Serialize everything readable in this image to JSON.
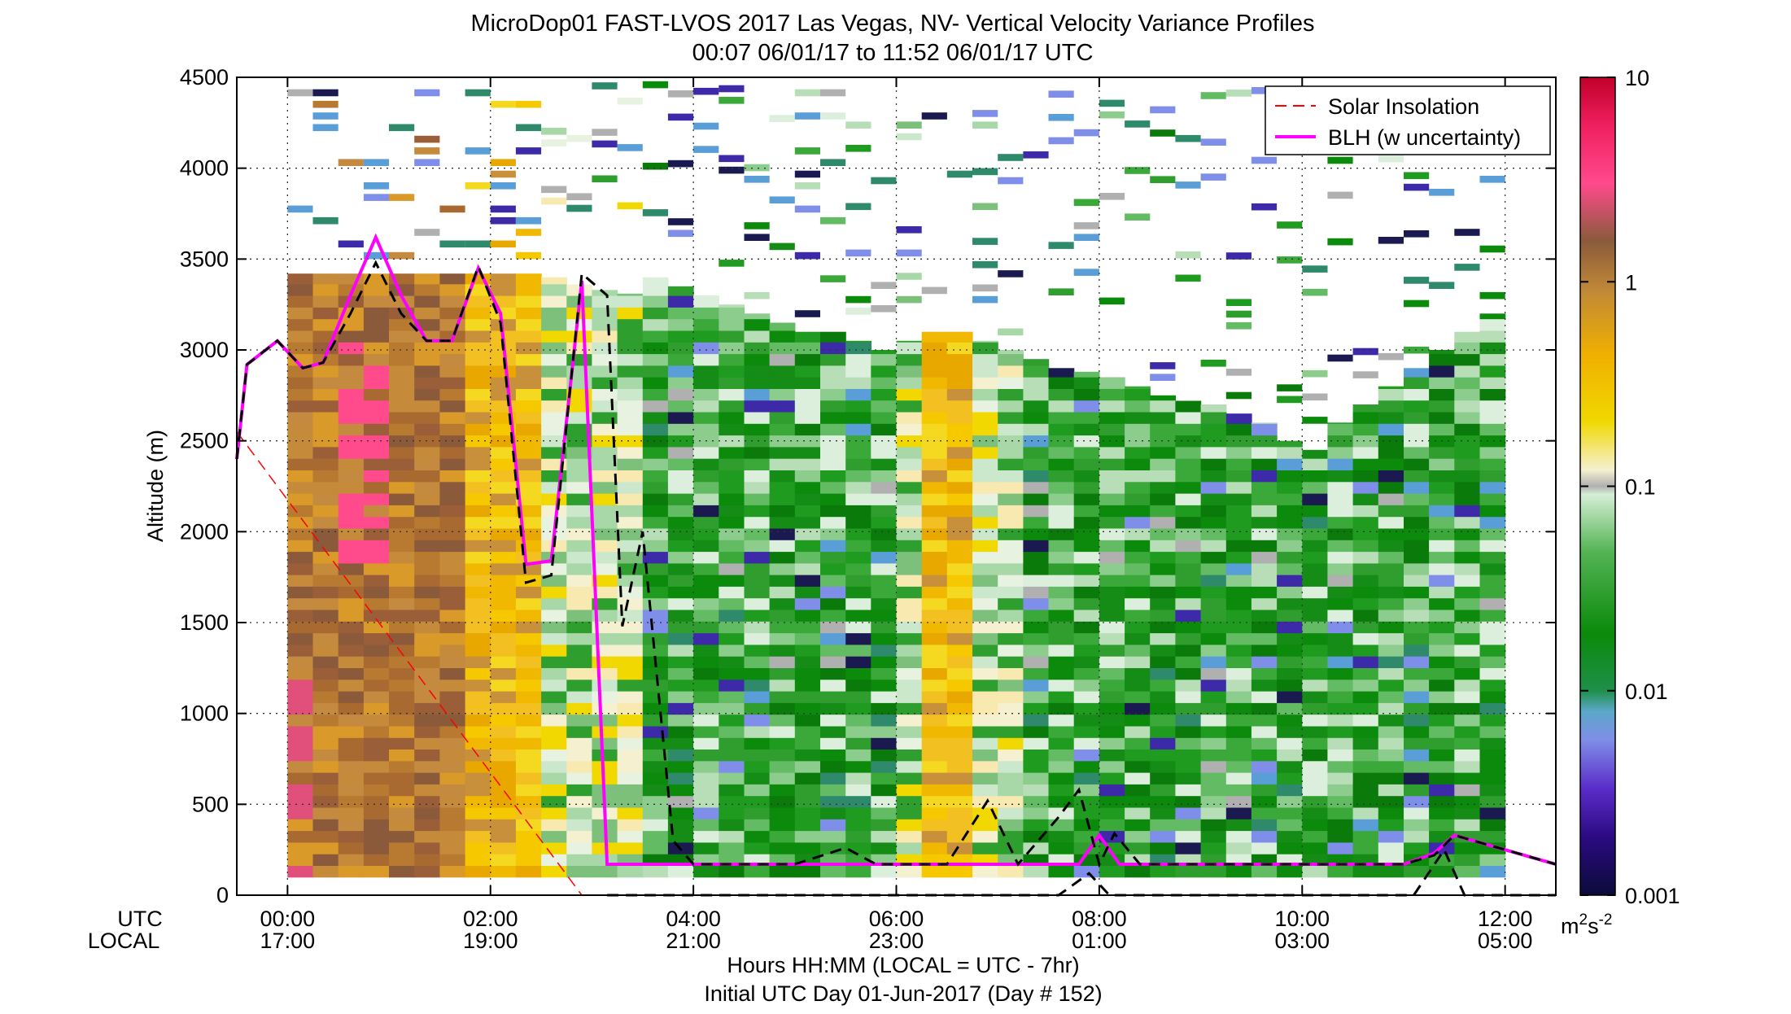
{
  "chart_data": {
    "type": "heatmap",
    "title_line1": "MicroDop01 FAST-LVOS 2017 Las Vegas, NV- Vertical Velocity Variance Profiles",
    "title_line2": "00:07 06/01/17 to 11:52 06/01/17  UTC",
    "ylabel": "Altitude (m)",
    "xlabel": "Hours HH:MM  (LOCAL = UTC - 7hr)",
    "footer": "Initial UTC Day 01-Jun-2017 (Day # 152)",
    "row_label_utc": "UTC",
    "row_label_local": "LOCAL",
    "xlim_hours": [
      -0.5,
      12.5
    ],
    "ylim": [
      0,
      4500
    ],
    "x_ticks_utc": [
      "00:00",
      "02:00",
      "04:00",
      "06:00",
      "08:00",
      "10:00",
      "12:00"
    ],
    "x_ticks_local": [
      "17:00",
      "19:00",
      "21:00",
      "23:00",
      "01:00",
      "03:00",
      "05:00"
    ],
    "x_tick_hours": [
      0,
      2,
      4,
      6,
      8,
      10,
      12
    ],
    "y_ticks": [
      "0",
      "500",
      "1000",
      "1500",
      "2000",
      "2500",
      "3000",
      "3500",
      "4000",
      "4500"
    ],
    "grid": true,
    "legend_position": "top-right",
    "legend": [
      {
        "name": "Solar Insolation",
        "color": "#ff0000",
        "style": "dashed"
      },
      {
        "name": "BLH (w uncertainty)",
        "color": "#ff00ff",
        "style": "solid"
      }
    ],
    "colorbar": {
      "scale": "log",
      "range": [
        0.001,
        10
      ],
      "tick_labels": [
        "10",
        "1",
        "0.1",
        "0.01",
        "0.001"
      ],
      "units": "m²s⁻²",
      "units_base": "m",
      "units_sup1": "2",
      "units_mid": "s",
      "units_sup2": "-2"
    },
    "columns_time_hours": [
      0.125,
      0.375,
      0.625,
      0.875,
      1.125,
      1.375,
      1.625,
      1.875,
      2.125,
      2.375,
      2.625,
      2.875,
      3.125,
      3.375,
      3.625,
      3.875,
      4.125,
      4.375,
      4.625,
      4.875,
      5.125,
      5.375,
      5.625,
      5.875,
      6.125,
      6.375,
      6.625,
      6.875,
      7.125,
      7.375,
      7.625,
      7.875,
      8.125,
      8.375,
      8.625,
      8.875,
      9.125,
      9.375,
      9.625,
      9.875,
      10.125,
      10.375,
      10.625,
      10.875,
      11.125,
      11.375,
      11.625,
      11.875
    ],
    "columns_top_alt": [
      3420,
      3420,
      3420,
      3420,
      3420,
      3420,
      3420,
      3420,
      3420,
      3420,
      3400,
      3360,
      3330,
      3310,
      3400,
      3350,
      3300,
      3250,
      3200,
      3150,
      3100,
      3100,
      3050,
      3000,
      3050,
      3100,
      3100,
      3050,
      3000,
      2950,
      2900,
      2880,
      2850,
      2800,
      2750,
      2720,
      2700,
      2650,
      2600,
      2500,
      2450,
      2600,
      2700,
      2800,
      2900,
      3000,
      3100,
      3200
    ],
    "columns_regime": [
      "hot",
      "hot",
      "hot",
      "hot",
      "hot",
      "hot",
      "hot",
      "warm",
      "warm",
      "warm",
      "mixed",
      "mixed",
      "mixed",
      "mixed",
      "green",
      "green",
      "green",
      "green",
      "green",
      "green",
      "green",
      "green",
      "green",
      "green",
      "mixed",
      "warm",
      "warm",
      "mixed",
      "mixed",
      "green",
      "green",
      "green",
      "green",
      "green",
      "green",
      "green",
      "green",
      "green",
      "green",
      "green",
      "green",
      "green",
      "green",
      "green",
      "green",
      "green",
      "green",
      "green"
    ],
    "bl_height": {
      "x": [
        -0.5,
        -0.4,
        -0.1,
        0.15,
        0.35,
        0.62,
        0.87,
        1.12,
        1.37,
        1.62,
        1.88,
        2.1,
        2.35,
        2.6,
        2.9,
        3.15,
        3.5,
        4,
        5,
        6,
        7,
        7.6,
        7.8,
        8,
        8.2,
        9,
        10,
        11,
        11.3,
        11.5,
        12.5
      ],
      "y": [
        2400,
        2920,
        3050,
        2900,
        2930,
        3300,
        3620,
        3300,
        3050,
        3050,
        3450,
        3200,
        1820,
        1840,
        3380,
        170,
        170,
        170,
        170,
        170,
        170,
        170,
        170,
        330,
        170,
        170,
        170,
        170,
        230,
        330,
        170
      ]
    },
    "bl_upper": {
      "x": [
        -0.5,
        -0.4,
        -0.1,
        0.15,
        0.35,
        0.62,
        0.87,
        1.12,
        1.37,
        1.62,
        1.88,
        2.1,
        2.35,
        2.6,
        2.9,
        3.15,
        3.3,
        3.5,
        3.8,
        4,
        5,
        5.5,
        5.8,
        6.5,
        6.9,
        7.2,
        7.6,
        7.8,
        8.0,
        8.15,
        8.4,
        9,
        10,
        11,
        11.3,
        11.5,
        12.5
      ],
      "y": [
        2400,
        2920,
        3050,
        2900,
        2930,
        3200,
        3480,
        3200,
        3050,
        3050,
        3460,
        3150,
        1720,
        1760,
        3420,
        3300,
        1480,
        2000,
        300,
        170,
        170,
        260,
        170,
        170,
        520,
        170,
        430,
        580,
        170,
        340,
        170,
        170,
        170,
        170,
        220,
        330,
        170
      ]
    },
    "bl_lower": {
      "x": [
        3.15,
        3.5,
        4,
        5,
        5.4,
        5.7,
        6,
        7,
        7.6,
        7.9,
        8.1,
        8.3,
        9,
        10,
        11.1,
        11.4,
        11.6,
        12.5
      ],
      "y": [
        0,
        0,
        0,
        0,
        0,
        0,
        0,
        0,
        0,
        120,
        0,
        0,
        0,
        0,
        0,
        250,
        0,
        0
      ]
    },
    "solar_insolation": {
      "x": [
        -0.5,
        2.9
      ],
      "y": [
        2550,
        0
      ]
    }
  }
}
